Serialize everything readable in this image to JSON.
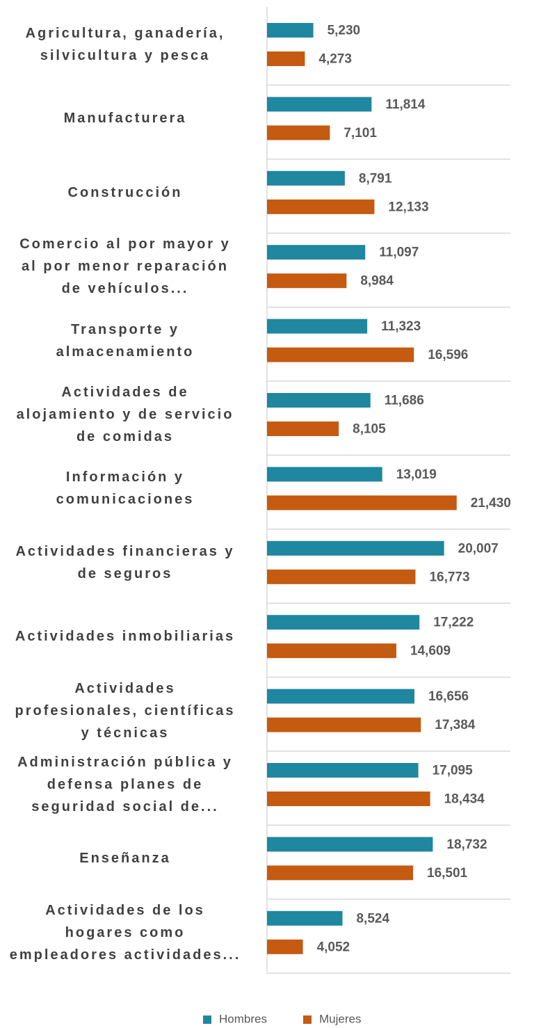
{
  "chart_data": {
    "type": "barh",
    "categories": [
      "Agricultura, ganadería,\nsilvicultura y pesca",
      "Manufacturera",
      "Construcción",
      "Comercio al por mayor y\nal por menor reparación\nde vehículos...",
      "Transporte y\nalmacenamiento",
      "Actividades de\nalojamiento y de servicio\nde comidas",
      "Información y\ncomunicaciones",
      "Actividades financieras y\nde seguros",
      "Actividades inmobiliarias",
      "Actividades\nprofesionales, científicas\ny técnicas",
      "Administración pública y\ndefensa planes de\nseguridad social de...",
      "Enseñanza",
      "Actividades de los\nhogares como\nempleadores actividades..."
    ],
    "series": [
      {
        "name": "Hombres",
        "color": "#1f87a0",
        "values": [
          5230,
          11814,
          8791,
          11097,
          11323,
          11686,
          13019,
          20007,
          17222,
          16656,
          17095,
          18732,
          8524
        ],
        "value_labels": [
          "5,230",
          "11,814",
          "8,791",
          "11,097",
          "11,323",
          "11,686",
          "13,019",
          "20,007",
          "17,222",
          "16,656",
          "17,095",
          "18,732",
          "8,524"
        ]
      },
      {
        "name": "Mujeres",
        "color": "#c55a11",
        "values": [
          4273,
          7101,
          12133,
          8984,
          16596,
          8105,
          21430,
          16773,
          14609,
          17384,
          18434,
          16501,
          4052
        ],
        "value_labels": [
          "4,273",
          "7,101",
          "12,133",
          "8,984",
          "16,596",
          "8,105",
          "21,430",
          "16,773",
          "14,609",
          "17,384",
          "18,434",
          "16,501",
          "4,052"
        ]
      }
    ],
    "xlim": [
      0,
      27500
    ]
  }
}
